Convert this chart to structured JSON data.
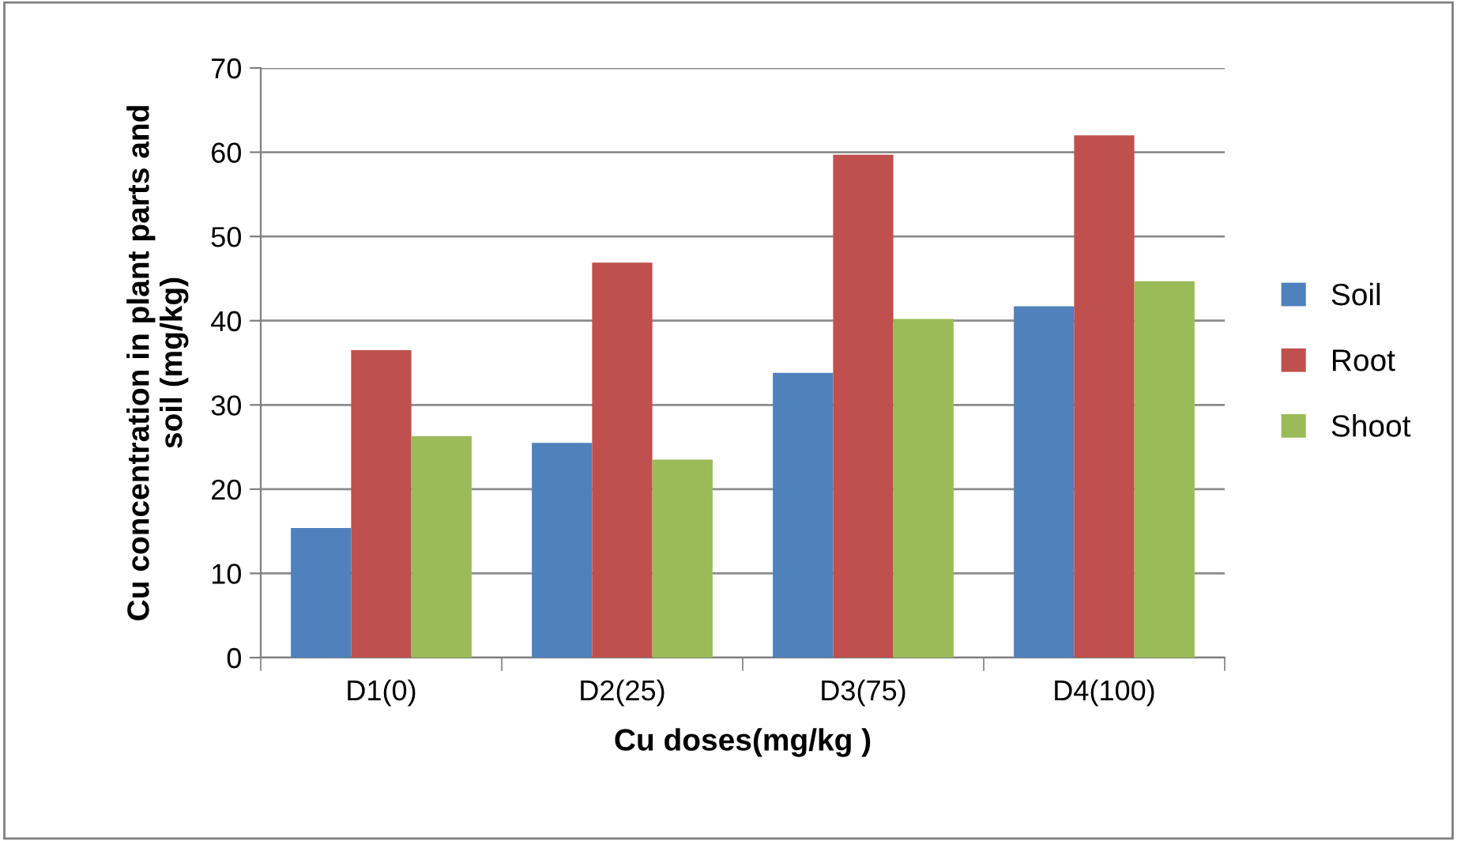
{
  "chart_data": {
    "type": "bar",
    "xlabel": "Cu doses(mg/kg )",
    "ylabel": "Cu concentration in plant parts and\nsoil (mg/kg)",
    "categories": [
      "D1(0)",
      "D2(25)",
      "D3(75)",
      "D4(100)"
    ],
    "series": [
      {
        "name": "Soil",
        "color": "#4f81bd",
        "values": [
          15.4,
          25.5,
          33.8,
          41.7
        ]
      },
      {
        "name": "Root",
        "color": "#c0504d",
        "values": [
          36.5,
          46.9,
          59.7,
          62.0
        ]
      },
      {
        "name": "Shoot",
        "color": "#9bbb59",
        "values": [
          26.3,
          23.5,
          40.2,
          44.7
        ]
      }
    ],
    "ylim": [
      0,
      70
    ],
    "yticks": [
      0,
      10,
      20,
      30,
      40,
      50,
      60,
      70
    ],
    "grid": "y",
    "legend": "right"
  }
}
